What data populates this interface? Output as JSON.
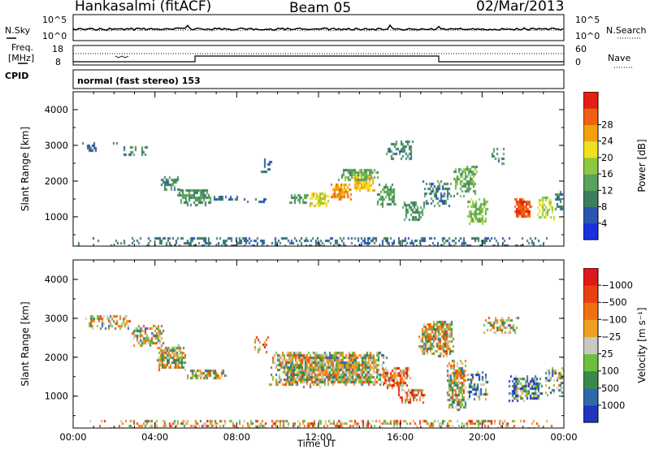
{
  "header": {
    "station": "Hankasalmi (fitACF)",
    "beam": "Beam 05",
    "date": "02/Mar/2013"
  },
  "status_panels": {
    "nsky_label": "N.Sky",
    "nsearch_label": "N.Search",
    "freq_label_1": "Freq.",
    "freq_label_2": "[MHz]",
    "nave_label": "Nave",
    "cpid_label": "CPID",
    "noise_ticks": [
      "10^5",
      "10^0"
    ],
    "freq_ticks": [
      "18",
      "8"
    ],
    "nave_ticks": [
      "60",
      "0"
    ],
    "cpid_text": "normal (fast stereo) 153"
  },
  "chart_data": [
    {
      "type": "heatmap",
      "name": "power",
      "ylabel": "Slant Range [km]",
      "xlabel": "",
      "ylim": [
        180,
        4500
      ],
      "yticks": [
        "1000",
        "2000",
        "3000",
        "4000"
      ],
      "xlim_hours": [
        0,
        24
      ],
      "colorbar": {
        "label": "Power [dB]",
        "ticks": [
          "4",
          "8",
          "12",
          "16",
          "20",
          "24",
          "28"
        ],
        "range": [
          0,
          30
        ],
        "colors": [
          "#1a2fe0",
          "#2b55b0",
          "#3d7e63",
          "#58a25a",
          "#8ec843",
          "#f0e020",
          "#f2a010",
          "#f06010",
          "#e42010"
        ]
      },
      "regions": [
        {
          "t": [
            0.2,
            2.2
          ],
          "r": [
            2800,
            3150
          ],
          "density": 0.25,
          "level": 6
        },
        {
          "t": [
            0.5,
            1.5
          ],
          "r": [
            2950,
            3100
          ],
          "density": 0.5,
          "level": 7
        },
        {
          "t": [
            2.3,
            3.8
          ],
          "r": [
            2700,
            3050
          ],
          "density": 0.35,
          "level": 8
        },
        {
          "t": [
            4.2,
            5.2
          ],
          "r": [
            1750,
            2200
          ],
          "density": 0.5,
          "level": 9
        },
        {
          "t": [
            5.0,
            6.8
          ],
          "r": [
            1350,
            1850
          ],
          "density": 0.65,
          "level": 10
        },
        {
          "t": [
            6.8,
            8.2
          ],
          "r": [
            1450,
            1650
          ],
          "density": 0.45,
          "level": 7
        },
        {
          "t": [
            8.2,
            9.5
          ],
          "r": [
            1400,
            1600
          ],
          "density": 0.3,
          "level": 6
        },
        {
          "t": [
            9.0,
            9.8
          ],
          "r": [
            2200,
            2700
          ],
          "density": 0.2,
          "level": 6
        },
        {
          "t": [
            10.5,
            11.5
          ],
          "r": [
            1400,
            1700
          ],
          "density": 0.7,
          "level": 10
        },
        {
          "t": [
            11.5,
            12.5
          ],
          "r": [
            1300,
            1750
          ],
          "density": 0.8,
          "level": 18
        },
        {
          "t": [
            12.5,
            13.6
          ],
          "r": [
            1500,
            2000
          ],
          "density": 0.85,
          "level": 22
        },
        {
          "t": [
            13.6,
            14.8
          ],
          "r": [
            1700,
            2250
          ],
          "density": 0.85,
          "level": 20
        },
        {
          "t": [
            12.8,
            15.0
          ],
          "r": [
            2000,
            2400
          ],
          "density": 0.6,
          "level": 12
        },
        {
          "t": [
            14.8,
            15.8
          ],
          "r": [
            1300,
            2000
          ],
          "density": 0.5,
          "level": 11
        },
        {
          "t": [
            15.2,
            16.6
          ],
          "r": [
            2600,
            3200
          ],
          "density": 0.4,
          "level": 9
        },
        {
          "t": [
            16.0,
            17.2
          ],
          "r": [
            900,
            1500
          ],
          "density": 0.55,
          "level": 10
        },
        {
          "t": [
            17.0,
            18.5
          ],
          "r": [
            1300,
            2100
          ],
          "density": 0.4,
          "level": 8
        },
        {
          "t": [
            18.5,
            19.8
          ],
          "r": [
            1600,
            2500
          ],
          "density": 0.55,
          "level": 12
        },
        {
          "t": [
            19.2,
            20.3
          ],
          "r": [
            800,
            1600
          ],
          "density": 0.6,
          "level": 14
        },
        {
          "t": [
            20.4,
            21.2
          ],
          "r": [
            2500,
            3000
          ],
          "density": 0.35,
          "level": 9
        },
        {
          "t": [
            21.5,
            22.4
          ],
          "r": [
            1000,
            1600
          ],
          "density": 0.8,
          "level": 26
        },
        {
          "t": [
            22.6,
            23.5
          ],
          "r": [
            900,
            1700
          ],
          "density": 0.5,
          "level": 16
        },
        {
          "t": [
            23.5,
            24.0
          ],
          "r": [
            1200,
            1800
          ],
          "density": 0.5,
          "level": 8
        },
        {
          "t": [
            0.0,
            24.0
          ],
          "r": [
            180,
            500
          ],
          "density": 0.35,
          "level": 7
        }
      ]
    },
    {
      "type": "heatmap",
      "name": "velocity",
      "ylabel": "Slant Range [km]",
      "xlabel": "Time UT",
      "ylim": [
        180,
        4500
      ],
      "yticks": [
        "1000",
        "2000",
        "3000",
        "4000"
      ],
      "xlim_hours": [
        0,
        24
      ],
      "xticks": [
        "00:00",
        "04:00",
        "08:00",
        "12:00",
        "16:00",
        "20:00",
        "00:00"
      ],
      "colorbar": {
        "label": "Velocity [m s⁻¹]",
        "ticks": [
          "1000",
          "500",
          "100",
          "25",
          "−25",
          "−100",
          "−500",
          "−1000"
        ],
        "colors": [
          "#2035c0",
          "#2f6aa8",
          "#3a8a4a",
          "#6cc040",
          "#c8c8c0",
          "#f0a020",
          "#f07010",
          "#e84010",
          "#e01818"
        ]
      },
      "regions": [
        {
          "t": [
            0.5,
            2.8
          ],
          "r": [
            2750,
            3150
          ],
          "density": 0.5,
          "level": 4
        },
        {
          "t": [
            2.8,
            4.5
          ],
          "r": [
            2300,
            2900
          ],
          "density": 0.6,
          "level": 4
        },
        {
          "t": [
            4.0,
            5.5
          ],
          "r": [
            1700,
            2400
          ],
          "density": 0.8,
          "level": 4
        },
        {
          "t": [
            5.5,
            7.5
          ],
          "r": [
            1450,
            1750
          ],
          "density": 0.7,
          "level": 4
        },
        {
          "t": [
            8.8,
            9.6
          ],
          "r": [
            2100,
            2600
          ],
          "density": 0.4,
          "level": 6
        },
        {
          "t": [
            9.5,
            15.5
          ],
          "r": [
            1250,
            2200
          ],
          "density": 0.9,
          "level": 4
        },
        {
          "t": [
            15.0,
            16.5
          ],
          "r": [
            1200,
            1800
          ],
          "density": 0.7,
          "level": 6
        },
        {
          "t": [
            15.8,
            17.2
          ],
          "r": [
            850,
            1250
          ],
          "density": 0.7,
          "level": 6
        },
        {
          "t": [
            16.8,
            18.6
          ],
          "r": [
            2000,
            3000
          ],
          "density": 0.8,
          "level": 4
        },
        {
          "t": [
            18.2,
            19.2
          ],
          "r": [
            600,
            2000
          ],
          "density": 0.8,
          "level": 4
        },
        {
          "t": [
            19.2,
            20.3
          ],
          "r": [
            900,
            1700
          ],
          "density": 0.6,
          "level": 2
        },
        {
          "t": [
            20.0,
            21.8
          ],
          "r": [
            2600,
            3100
          ],
          "density": 0.5,
          "level": 4
        },
        {
          "t": [
            21.2,
            23.0
          ],
          "r": [
            900,
            1600
          ],
          "density": 0.7,
          "level": 2
        },
        {
          "t": [
            23.0,
            24.0
          ],
          "r": [
            1000,
            1800
          ],
          "density": 0.5,
          "level": 3
        },
        {
          "t": [
            0.0,
            24.0
          ],
          "r": [
            180,
            450
          ],
          "density": 0.4,
          "level": 5
        }
      ]
    }
  ]
}
